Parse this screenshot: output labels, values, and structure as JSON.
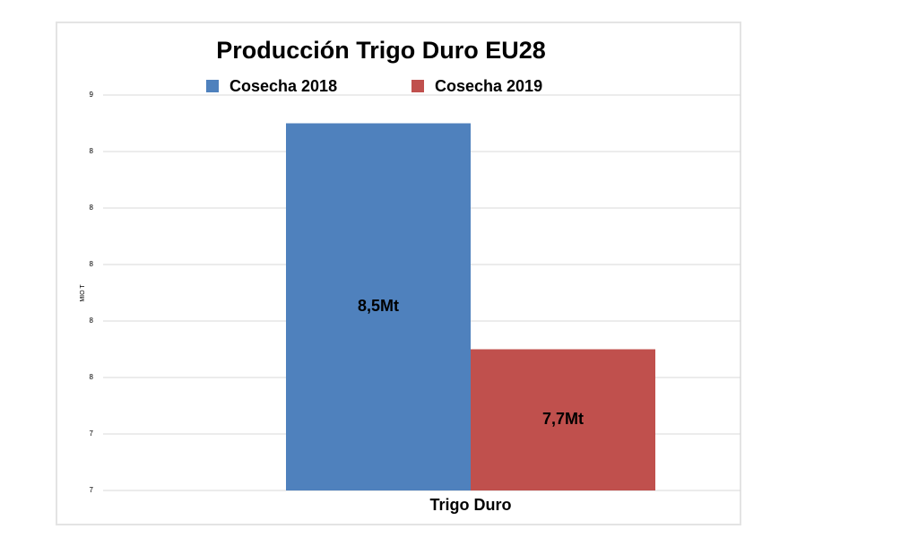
{
  "chart_data": {
    "type": "bar",
    "title": "Producción Trigo Duro EU28",
    "y_label": "MIO T",
    "categories": [
      "Trigo Duro"
    ],
    "series": [
      {
        "name": "Cosecha 2018",
        "color": "#4f81bd",
        "values": [
          8.5
        ],
        "value_labels": [
          "8,5Mt"
        ]
      },
      {
        "name": "Cosecha 2019",
        "color": "#c0504d",
        "values": [
          7.7
        ],
        "value_labels": [
          "7,7Mt"
        ]
      }
    ],
    "ylim": [
      7.2,
      8.6
    ],
    "yticks": [
      {
        "value": 7.2,
        "label": "7"
      },
      {
        "value": 7.4,
        "label": "7"
      },
      {
        "value": 7.6,
        "label": "8"
      },
      {
        "value": 7.8,
        "label": "8"
      },
      8,
      {
        "value": 8.2,
        "label": "8"
      },
      {
        "value": 8.4,
        "label": "8"
      },
      {
        "value": 8.6,
        "label": "9"
      }
    ],
    "grid": true
  }
}
